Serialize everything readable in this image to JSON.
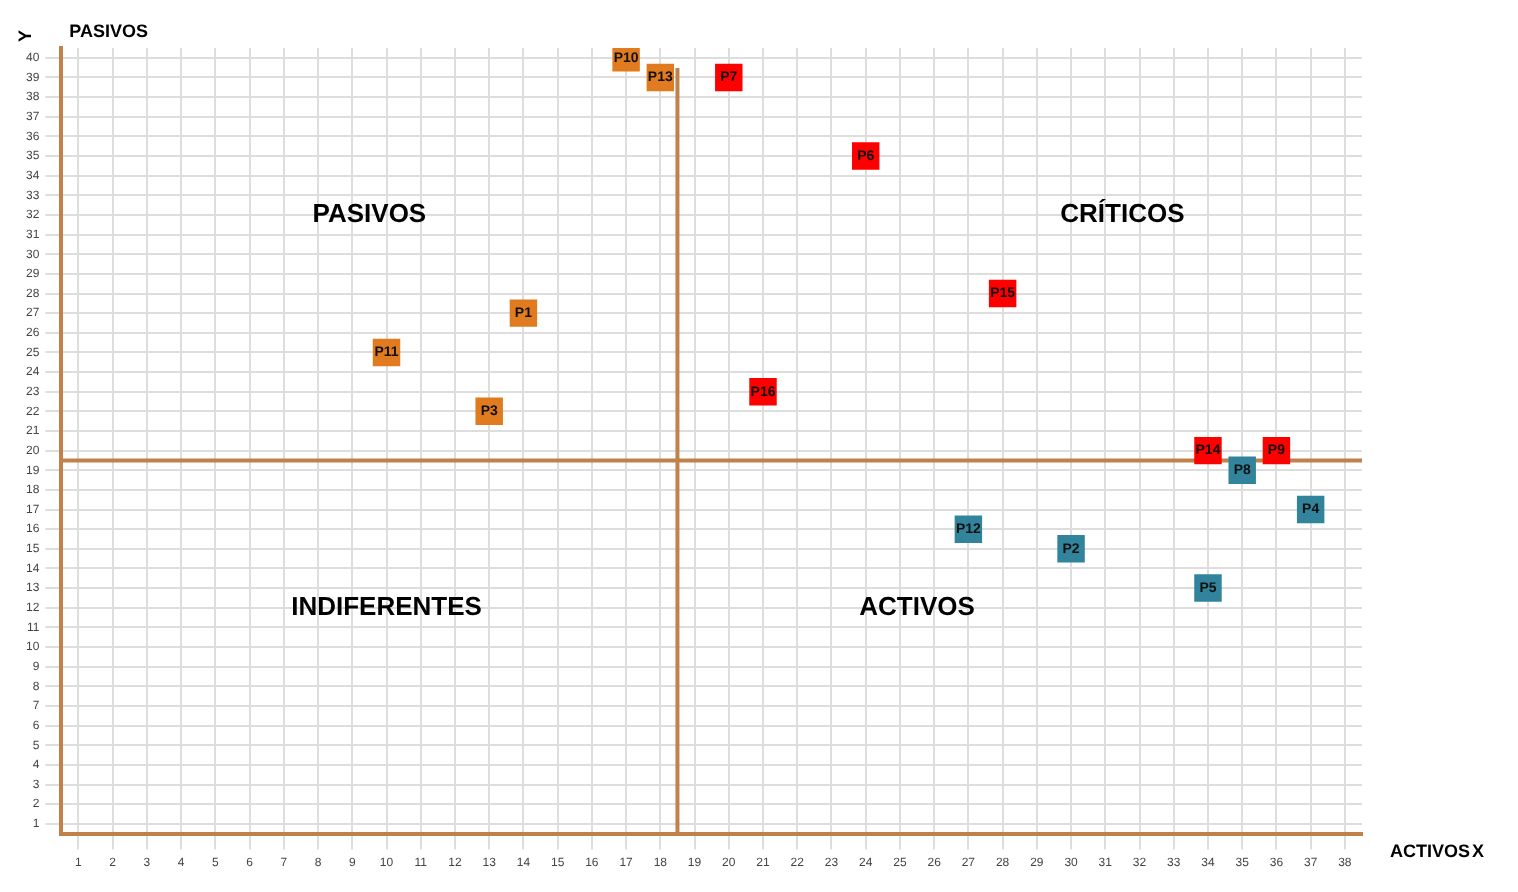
{
  "chart_data": {
    "type": "scatter",
    "xlabel": "ACTIVOS",
    "ylabel": "PASIVOS",
    "xlim": [
      0.5,
      38.5
    ],
    "ylim": [
      0.5,
      40.5
    ],
    "xticks": [
      1,
      2,
      3,
      4,
      5,
      6,
      7,
      8,
      9,
      10,
      11,
      12,
      13,
      14,
      15,
      16,
      17,
      18,
      19,
      20,
      21,
      22,
      23,
      24,
      25,
      26,
      27,
      28,
      29,
      30,
      31,
      32,
      33,
      34,
      35,
      36,
      37,
      38
    ],
    "yticks": [
      1,
      2,
      3,
      4,
      5,
      6,
      7,
      8,
      9,
      10,
      11,
      12,
      13,
      14,
      15,
      16,
      17,
      18,
      19,
      20,
      21,
      22,
      23,
      24,
      25,
      26,
      27,
      28,
      29,
      30,
      31,
      32,
      33,
      34,
      35,
      36,
      37,
      38,
      39,
      40
    ],
    "grid": true,
    "legend": false,
    "marker": "square",
    "series": [
      {
        "color": "#e07b1f",
        "x": [
          17,
          18,
          14,
          10,
          13
        ],
        "values": [
          40,
          39,
          27,
          25,
          22
        ]
      },
      {
        "color": "#ff0000",
        "x": [
          20,
          21,
          24,
          28,
          34,
          36
        ],
        "values": [
          39,
          23,
          35,
          28,
          20,
          20
        ]
      },
      {
        "color": "#31849b",
        "x": [
          35,
          37,
          27,
          30,
          34
        ],
        "values": [
          19,
          17,
          16,
          15,
          13
        ]
      }
    ],
    "ref_lines": [
      {
        "axis": "x",
        "value": 18.5,
        "color": "#c0824a"
      },
      {
        "axis": "y",
        "value": 19.5,
        "color": "#c0824a"
      }
    ],
    "annotations": [
      "PASIVOS",
      "CRÍTICOS",
      "INDIFERENTES",
      "ACTIVOS",
      "Y",
      "X",
      {
        "text": "P10",
        "x": 17,
        "y": 40
      },
      {
        "text": "P13",
        "x": 18,
        "y": 39
      },
      {
        "text": "P1",
        "x": 14,
        "y": 27
      },
      {
        "text": "P11",
        "x": 10,
        "y": 25
      },
      {
        "text": "P3",
        "x": 13,
        "y": 22
      },
      {
        "text": "P7",
        "x": 20,
        "y": 39
      },
      {
        "text": "P16",
        "x": 21,
        "y": 23
      },
      {
        "text": "P6",
        "x": 24,
        "y": 35
      },
      {
        "text": "P15",
        "x": 28,
        "y": 28
      },
      {
        "text": "P14",
        "x": 34,
        "y": 20
      },
      {
        "text": "P9",
        "x": 36,
        "y": 20
      },
      {
        "text": "P8",
        "x": 35,
        "y": 19
      },
      {
        "text": "P4",
        "x": 37,
        "y": 17
      },
      {
        "text": "P12",
        "x": 27,
        "y": 16
      },
      {
        "text": "P2",
        "x": 30,
        "y": 15
      },
      {
        "text": "P5",
        "x": 34,
        "y": 13
      }
    ]
  }
}
